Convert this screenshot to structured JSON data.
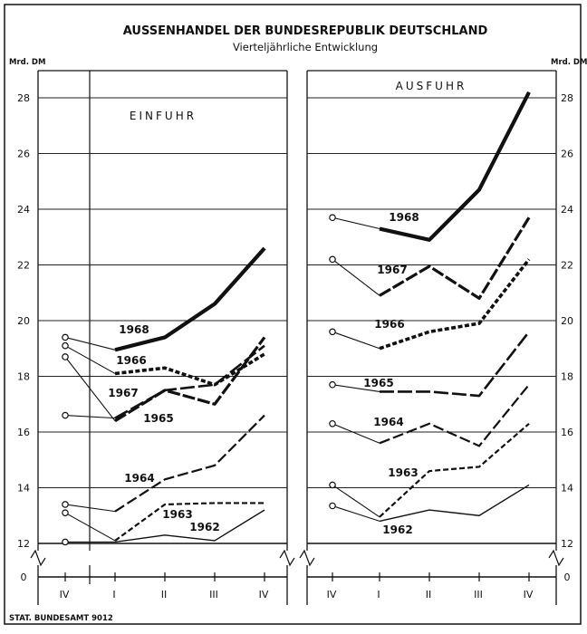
{
  "chart_data": {
    "type": "line",
    "title": "AUSSENHANDEL DER BUNDESREPUBLIK DEUTSCHLAND",
    "subtitle": "Vierteljährliche Entwicklung",
    "ylabel_left": "Mrd. DM",
    "ylabel_right": "Mrd. DM",
    "source": "STAT. BUNDESAMT 9012",
    "x_categories": [
      "IV",
      "I",
      "II",
      "III",
      "IV"
    ],
    "yticks": [
      "28",
      "26",
      "24",
      "22",
      "20",
      "18",
      "16",
      "14",
      "12",
      "0"
    ],
    "panels": [
      {
        "name": "EINFUHR",
        "series": [
          {
            "name": "1968",
            "values": [
              19.4,
              18.95,
              19.4,
              20.6,
              22.6
            ]
          },
          {
            "name": "1967",
            "values": [
              18.7,
              16.4,
              17.5,
              17.0,
              19.4
            ]
          },
          {
            "name": "1966",
            "values": [
              19.1,
              18.1,
              18.3,
              17.7,
              18.8
            ]
          },
          {
            "name": "1965",
            "values": [
              16.6,
              16.5,
              17.5,
              17.7,
              19.1
            ]
          },
          {
            "name": "1964",
            "values": [
              13.4,
              13.15,
              14.3,
              14.8,
              16.6
            ]
          },
          {
            "name": "1963",
            "values": [
              13.1,
              12.1,
              13.4,
              13.45,
              13.45
            ]
          },
          {
            "name": "1962",
            "values": [
              12.05,
              12.05,
              12.3,
              12.1,
              13.2
            ]
          }
        ]
      },
      {
        "name": "AUSFUHR",
        "series": [
          {
            "name": "1968",
            "values": [
              23.7,
              23.3,
              22.9,
              24.7,
              28.2
            ]
          },
          {
            "name": "1967",
            "values": [
              22.2,
              20.9,
              21.95,
              20.8,
              23.7
            ]
          },
          {
            "name": "1966",
            "values": [
              19.6,
              19.0,
              19.6,
              19.9,
              22.2
            ]
          },
          {
            "name": "1965",
            "values": [
              17.7,
              17.45,
              17.45,
              17.3,
              19.6
            ]
          },
          {
            "name": "1964",
            "values": [
              16.3,
              15.6,
              16.3,
              15.5,
              17.7
            ]
          },
          {
            "name": "1963",
            "values": [
              14.1,
              12.95,
              14.6,
              14.75,
              16.3
            ]
          },
          {
            "name": "1962",
            "values": [
              13.35,
              12.8,
              13.2,
              13.0,
              14.1
            ]
          }
        ]
      }
    ],
    "grid": true
  }
}
